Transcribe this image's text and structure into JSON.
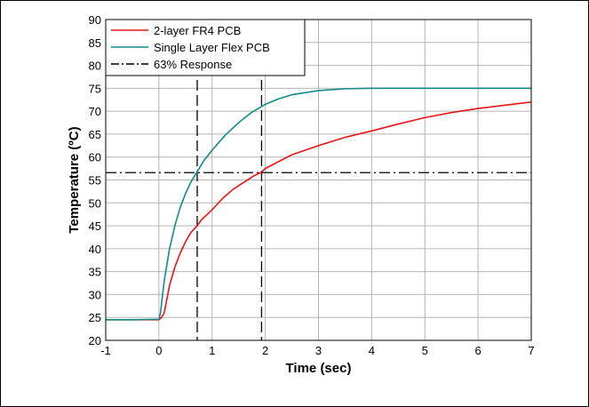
{
  "chart_data": {
    "type": "line",
    "xlabel": "Time (sec)",
    "ylabel": "Temperature  (ºC)",
    "xlim": [
      -1,
      7
    ],
    "ylim": [
      20,
      90
    ],
    "x_ticks": [
      -1,
      0,
      1,
      2,
      3,
      4,
      5,
      6,
      7
    ],
    "y_ticks": [
      20,
      25,
      30,
      35,
      40,
      45,
      50,
      55,
      60,
      65,
      70,
      75,
      80,
      85,
      90
    ],
    "grid": true,
    "legend_position": "top-left",
    "series": [
      {
        "name": "2-layer FR4 PCB",
        "color": "#e8141b",
        "style": "solid",
        "points": [
          [
            -1,
            24.5
          ],
          [
            -0.5,
            24.5
          ],
          [
            0,
            24.5
          ],
          [
            0.05,
            25
          ],
          [
            0.1,
            26
          ],
          [
            0.15,
            29
          ],
          [
            0.2,
            32
          ],
          [
            0.3,
            36
          ],
          [
            0.4,
            39
          ],
          [
            0.5,
            41.5
          ],
          [
            0.6,
            43.5
          ],
          [
            0.72,
            45
          ],
          [
            0.8,
            46.3
          ],
          [
            1,
            48.5
          ],
          [
            1.2,
            51
          ],
          [
            1.4,
            53
          ],
          [
            1.6,
            54.5
          ],
          [
            1.8,
            56
          ],
          [
            1.93,
            56.7
          ],
          [
            2,
            57.5
          ],
          [
            2.25,
            59
          ],
          [
            2.5,
            60.5
          ],
          [
            3,
            62.5
          ],
          [
            3.5,
            64.3
          ],
          [
            4,
            65.7
          ],
          [
            4.5,
            67.2
          ],
          [
            5,
            68.6
          ],
          [
            5.5,
            69.7
          ],
          [
            6,
            70.6
          ],
          [
            6.5,
            71.3
          ],
          [
            7,
            72
          ]
        ]
      },
      {
        "name": "Single Layer Flex PCB",
        "color": "#138a86",
        "style": "solid",
        "points": [
          [
            -1,
            24.5
          ],
          [
            -0.5,
            24.5
          ],
          [
            0,
            24.6
          ],
          [
            0.03,
            26
          ],
          [
            0.1,
            33
          ],
          [
            0.2,
            40
          ],
          [
            0.3,
            45
          ],
          [
            0.4,
            49
          ],
          [
            0.5,
            52
          ],
          [
            0.6,
            54.5
          ],
          [
            0.72,
            56.8
          ],
          [
            0.85,
            59.3
          ],
          [
            1,
            61.5
          ],
          [
            1.25,
            64.8
          ],
          [
            1.5,
            67.5
          ],
          [
            1.75,
            69.8
          ],
          [
            2,
            71.5
          ],
          [
            2.25,
            72.7
          ],
          [
            2.5,
            73.6
          ],
          [
            3,
            74.5
          ],
          [
            3.5,
            74.9
          ],
          [
            4,
            75
          ],
          [
            5,
            75
          ],
          [
            6,
            75
          ],
          [
            7,
            75
          ]
        ]
      },
      {
        "name": "63% Response",
        "color": "#000000",
        "style": "dash-dot",
        "y": 56.6
      }
    ],
    "response_markers_x": [
      0.72,
      1.93
    ]
  }
}
